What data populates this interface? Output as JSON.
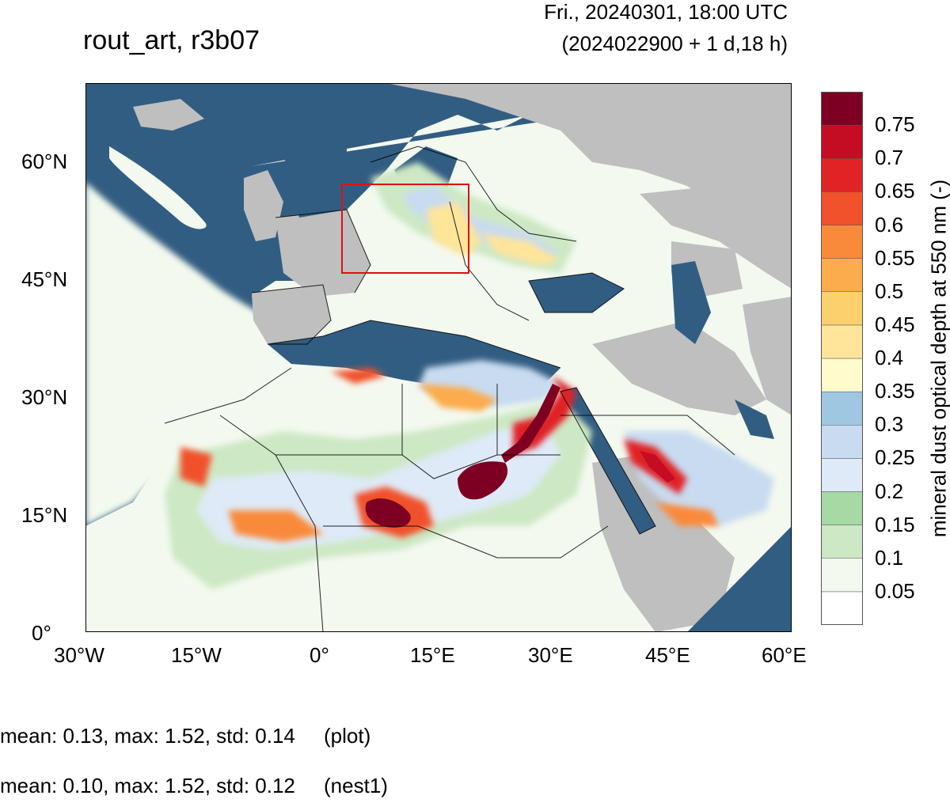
{
  "header": {
    "title": "rout_art, r3b07",
    "valid_time": "Fri., 20240301, 18:00 UTC",
    "lead_time": "(2024022900 + 1 d,18 h)"
  },
  "axes": {
    "lon_labels": [
      "30°W",
      "15°W",
      "0°",
      "15°E",
      "30°E",
      "45°E",
      "60°E"
    ],
    "lat_labels": [
      "60°N",
      "45°N",
      "30°N",
      "15°N",
      "0°"
    ]
  },
  "colorbar": {
    "title": "mineral dust optical depth at 550 nm (-)",
    "labels": [
      "0.75",
      "0.7",
      "0.65",
      "0.6",
      "0.55",
      "0.5",
      "0.45",
      "0.4",
      "0.35",
      "0.3",
      "0.25",
      "0.2",
      "0.15",
      "0.1",
      "0.05"
    ],
    "colors": [
      "#ffffff",
      "#f3f9ef",
      "#cde8c4",
      "#a6d9a4",
      "#deeaf7",
      "#c8dbf0",
      "#9fc7e2",
      "#fffbcc",
      "#fee59a",
      "#fdd06e",
      "#fcac4c",
      "#f98a3a",
      "#f1512b",
      "#e02425",
      "#c40c22",
      "#7d0022"
    ]
  },
  "colors": {
    "ocean": "#325d82",
    "land_missing": "#bfbfbf",
    "nest_box": "#e01010"
  },
  "stats": [
    {
      "text": "mean: 0.13, max: 1.52, std: 0.14",
      "label": "(plot)"
    },
    {
      "text": "mean: 0.10, max: 1.52, std: 0.12",
      "label": "(nest1)"
    }
  ]
}
